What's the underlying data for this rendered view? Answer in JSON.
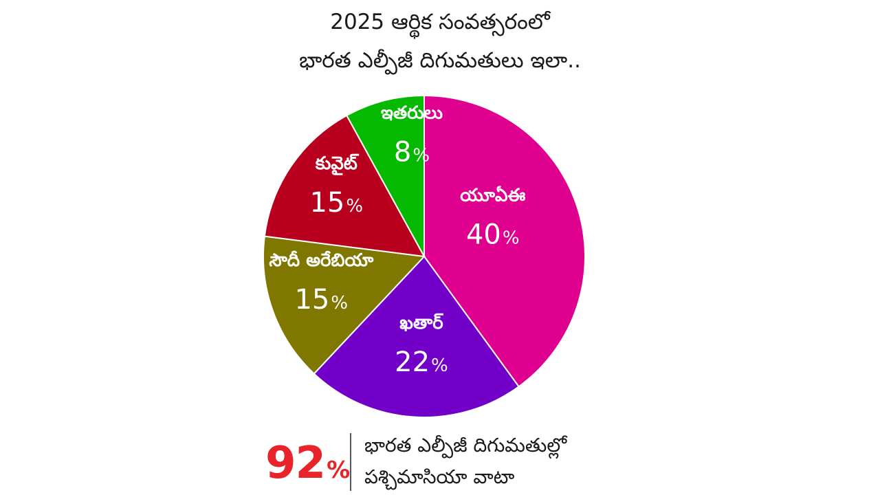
{
  "header": {
    "title_line1": "2025 ఆర్థిక సంవత్సరంలో",
    "title_line2": "భారత ఎల్పీజీ దిగుమతులు ఇలా.."
  },
  "chart_data": {
    "type": "pie",
    "title": "2025 ఆర్థిక సంవత్సరంలో భారత ఎల్పీజీ దిగుమతులు ఇలా..",
    "unit": "%",
    "start": "top, clockwise",
    "slices": [
      {
        "label": "యూఏఈ",
        "value": 40,
        "value_label": "40",
        "color": "#e0008f"
      },
      {
        "label": "ఖతార్",
        "value": 22,
        "value_label": "22",
        "color": "#7300c8"
      },
      {
        "label": "సౌదీ అరేబియా",
        "value": 15,
        "value_label": "15",
        "color": "#807700"
      },
      {
        "label": "కువైట్",
        "value": 15,
        "value_label": "15",
        "color": "#b8001e"
      },
      {
        "label": "ఇతరులు",
        "value": 8,
        "value_label": "8",
        "color": "#05b800"
      }
    ],
    "label_color": "#ffffff"
  },
  "footer": {
    "percent_value": "92",
    "percent_sign": "%",
    "line1": "భారత ఎల్పీజీ దిగుమతుల్లో",
    "line2": "పశ్చిమాసియా వాటా",
    "accent_color": "#e8232a"
  }
}
